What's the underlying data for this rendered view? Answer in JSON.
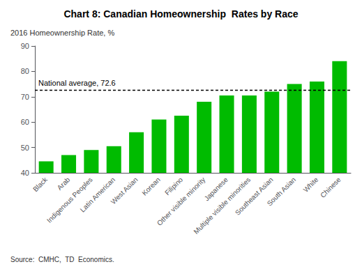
{
  "chart_data": {
    "type": "bar",
    "title": "Chart 8: Canadian Homeownership  Rates by Race",
    "ylabel": "2016 Homeownership Rate, %",
    "source": "Source:  CMHC,  TD  Economics.",
    "reference_line": {
      "value": 72.6,
      "label": "National average, 72.6"
    },
    "categories": [
      "Black",
      "Arab",
      "Indigenous Peoples",
      "Latin American",
      "West Asian",
      "Korean",
      "Filipino",
      "Other visible minority",
      "Japanese",
      "Multiple visible minorities",
      "Southeast Asian",
      "South Asian",
      "White",
      "Chinese"
    ],
    "values": [
      44.5,
      47.0,
      49.0,
      50.5,
      56.0,
      61.0,
      62.5,
      68.0,
      70.5,
      70.5,
      72.0,
      75.0,
      76.0,
      84.0
    ],
    "color": "#00BB00",
    "ylim": [
      40,
      90
    ],
    "yticks": [
      40,
      50,
      60,
      70,
      80,
      90
    ],
    "grid": false
  }
}
